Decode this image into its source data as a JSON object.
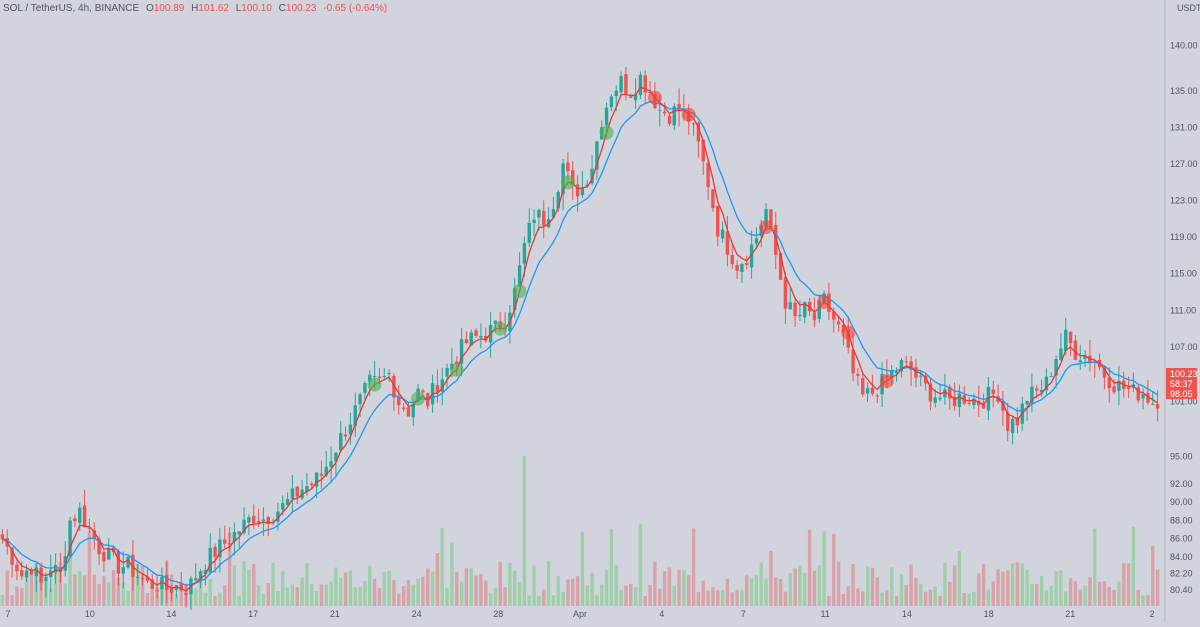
{
  "header": {
    "symbol": "SOL / TetherUS, 4h, BINANCE",
    "o_label": "O",
    "o_value": "100.89",
    "h_label": "H",
    "h_value": "101.62",
    "l_label": "L",
    "l_value": "100.10",
    "c_label": "C",
    "c_value": "100.23",
    "change": "-0.65 (-0.64%)"
  },
  "currency_label": "USDT",
  "price_tag": {
    "price": "100.23",
    "countdown": "58:37",
    "low_marker": "98.05"
  },
  "colors": {
    "background": "#d1d4dc",
    "up": "#26a69a",
    "down": "#ef5350",
    "fast_ma": "#e53935",
    "slow_ma": "#2196f3",
    "buy_marker": "#4caf50",
    "sell_marker": "#f44336"
  },
  "chart_data": {
    "type": "candlestick",
    "y_ticks": [
      "140.00",
      "135.00",
      "131.00",
      "127.00",
      "123.00",
      "119.00",
      "115.00",
      "111.00",
      "107.00",
      "104.00",
      "101.00",
      "95.00",
      "92.00",
      "90.00",
      "88.00",
      "86.00",
      "84.00",
      "82.20",
      "80.40"
    ],
    "x_ticks": [
      "7",
      "10",
      "14",
      "17",
      "21",
      "24",
      "28",
      "Apr",
      "4",
      "7",
      "11",
      "14",
      "18",
      "21",
      "2"
    ],
    "ylim": [
      79.5,
      143
    ],
    "close_path": [
      [
        0,
        86
      ],
      [
        2,
        84
      ],
      [
        4,
        82
      ],
      [
        6,
        83
      ],
      [
        8,
        81
      ],
      [
        10,
        83
      ],
      [
        12,
        82
      ],
      [
        14,
        88
      ],
      [
        16,
        89
      ],
      [
        18,
        87
      ],
      [
        20,
        85
      ],
      [
        22,
        84
      ],
      [
        24,
        83
      ],
      [
        26,
        83
      ],
      [
        28,
        82
      ],
      [
        30,
        81
      ],
      [
        32,
        81
      ],
      [
        34,
        80.5
      ],
      [
        36,
        80.8
      ],
      [
        38,
        80.6
      ],
      [
        39,
        81
      ],
      [
        40,
        82
      ],
      [
        42,
        83.5
      ],
      [
        44,
        84.6
      ],
      [
        46,
        85.5
      ],
      [
        48,
        86.5
      ],
      [
        50,
        87.5
      ],
      [
        52,
        88.5
      ],
      [
        54,
        88.2
      ],
      [
        56,
        88.8
      ],
      [
        58,
        89.5
      ],
      [
        60,
        90.5
      ],
      [
        62,
        91.5
      ],
      [
        64,
        92
      ],
      [
        66,
        93
      ],
      [
        68,
        95
      ],
      [
        70,
        97
      ],
      [
        72,
        99
      ],
      [
        74,
        101
      ],
      [
        76,
        103
      ],
      [
        78,
        103
      ],
      [
        80,
        104
      ],
      [
        82,
        101
      ],
      [
        84,
        100
      ],
      [
        86,
        102
      ],
      [
        88,
        101
      ],
      [
        90,
        103
      ],
      [
        92,
        104.5
      ],
      [
        94,
        106
      ],
      [
        96,
        107.5
      ],
      [
        98,
        108
      ],
      [
        100,
        108.5
      ],
      [
        102,
        109
      ],
      [
        104,
        110
      ],
      [
        106,
        113
      ],
      [
        108,
        118
      ],
      [
        110,
        121.5
      ],
      [
        112,
        121
      ],
      [
        114,
        123
      ],
      [
        116,
        127
      ],
      [
        118,
        124
      ],
      [
        120,
        124.5
      ],
      [
        122,
        127
      ],
      [
        124,
        132
      ],
      [
        126,
        135
      ],
      [
        128,
        136
      ],
      [
        130,
        135
      ],
      [
        132,
        136.5
      ],
      [
        134,
        135
      ],
      [
        136,
        133
      ],
      [
        138,
        132.5
      ],
      [
        140,
        133
      ],
      [
        142,
        132
      ],
      [
        144,
        129
      ],
      [
        146,
        125
      ],
      [
        148,
        120
      ],
      [
        150,
        118
      ],
      [
        152,
        116
      ],
      [
        154,
        117
      ],
      [
        156,
        119
      ],
      [
        158,
        122
      ],
      [
        160,
        117
      ],
      [
        162,
        112
      ],
      [
        164,
        110
      ],
      [
        166,
        111
      ],
      [
        168,
        110
      ],
      [
        170,
        112
      ],
      [
        172,
        110
      ],
      [
        174,
        108
      ],
      [
        176,
        104
      ],
      [
        178,
        101.5
      ],
      [
        180,
        102
      ],
      [
        182,
        103
      ],
      [
        184,
        104
      ],
      [
        186,
        105
      ],
      [
        188,
        104.5
      ],
      [
        190,
        103
      ],
      [
        192,
        102
      ],
      [
        194,
        101.5
      ],
      [
        196,
        101
      ],
      [
        198,
        101.5
      ],
      [
        200,
        101.5
      ],
      [
        202,
        101
      ],
      [
        204,
        101.6
      ],
      [
        206,
        102
      ],
      [
        208,
        98.5
      ],
      [
        210,
        99
      ],
      [
        212,
        101.5
      ],
      [
        214,
        102
      ],
      [
        216,
        103
      ],
      [
        218,
        106
      ],
      [
        220,
        108
      ],
      [
        222,
        106.5
      ],
      [
        224,
        106
      ],
      [
        226,
        105.5
      ],
      [
        228,
        104
      ],
      [
        230,
        103
      ],
      [
        232,
        102.5
      ],
      [
        234,
        102
      ],
      [
        236,
        102
      ],
      [
        238,
        101
      ],
      [
        239,
        100.23
      ]
    ],
    "sell_markers_at_bar": [
      135,
      142,
      158,
      170,
      175,
      183
    ],
    "buy_markers_at_bar": [
      77,
      86,
      94,
      103,
      107,
      117,
      125
    ],
    "fast_ma_period": 4,
    "slow_ma_period": 10
  }
}
